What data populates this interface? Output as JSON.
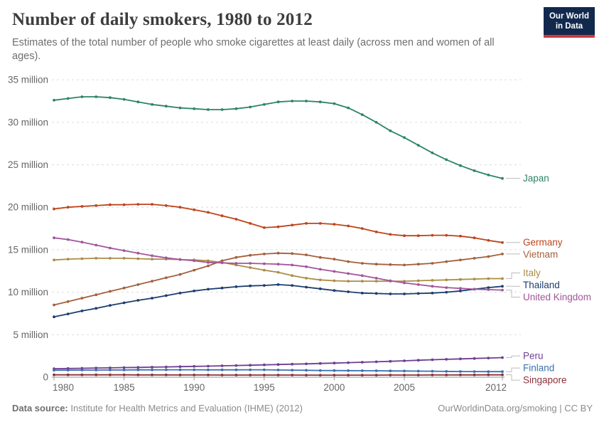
{
  "header": {
    "title": "Number of daily smokers, 1980 to 2012",
    "subtitle": "Estimates of the total number of people who smoke cigarettes at least daily (across men and women of all ages)."
  },
  "logo": {
    "line1": "Our World",
    "line2": "in Data"
  },
  "footer": {
    "source_label": "Data source:",
    "source_text": " Institute for Health Metrics and Evaluation (IHME) (2012)",
    "right_text": "OurWorldinData.org/smoking | CC BY"
  },
  "chart_data": {
    "type": "line",
    "title": "Number of daily smokers, 1980 to 2012",
    "xlabel": "",
    "ylabel": "",
    "xlim": [
      1980,
      2012
    ],
    "ylim": [
      0,
      35
    ],
    "grid": "horizontal-dashed",
    "legend_position": "right-end-labels",
    "x": [
      1980,
      1981,
      1982,
      1983,
      1984,
      1985,
      1986,
      1987,
      1988,
      1989,
      1990,
      1991,
      1992,
      1993,
      1994,
      1995,
      1996,
      1997,
      1998,
      1999,
      2000,
      2001,
      2002,
      2003,
      2004,
      2005,
      2006,
      2007,
      2008,
      2009,
      2010,
      2011,
      2012
    ],
    "xticks": [
      1980,
      1985,
      1990,
      1995,
      2000,
      2005,
      2012
    ],
    "yticks": [
      {
        "value": 0,
        "label": "0"
      },
      {
        "value": 5,
        "label": "5 million"
      },
      {
        "value": 10,
        "label": "10 million"
      },
      {
        "value": 15,
        "label": "15 million"
      },
      {
        "value": 20,
        "label": "20 million"
      },
      {
        "value": 25,
        "label": "25 million"
      },
      {
        "value": 30,
        "label": "30 million"
      },
      {
        "value": 35,
        "label": "35 million"
      }
    ],
    "unit": "million",
    "series": [
      {
        "name": "Japan",
        "color": "#2C8465",
        "values": [
          32.6,
          32.8,
          33.0,
          33.0,
          32.9,
          32.7,
          32.4,
          32.1,
          31.9,
          31.7,
          31.6,
          31.5,
          31.5,
          31.6,
          31.8,
          32.1,
          32.4,
          32.5,
          32.5,
          32.4,
          32.2,
          31.7,
          30.9,
          30.0,
          29.0,
          28.2,
          27.3,
          26.4,
          25.6,
          24.9,
          24.3,
          23.8,
          23.4
        ]
      },
      {
        "name": "Germany",
        "color": "#BE441C",
        "values": [
          19.8,
          20.0,
          20.1,
          20.2,
          20.3,
          20.3,
          20.35,
          20.35,
          20.2,
          20.0,
          19.7,
          19.4,
          19.0,
          18.6,
          18.1,
          17.6,
          17.7,
          17.9,
          18.1,
          18.1,
          18.0,
          17.8,
          17.5,
          17.1,
          16.8,
          16.65,
          16.65,
          16.7,
          16.7,
          16.6,
          16.4,
          16.1,
          15.85
        ]
      },
      {
        "name": "Vietnam",
        "color": "#A2603C",
        "values": [
          8.5,
          8.9,
          9.3,
          9.7,
          10.1,
          10.5,
          10.9,
          11.3,
          11.7,
          12.1,
          12.6,
          13.1,
          13.7,
          14.1,
          14.35,
          14.5,
          14.6,
          14.55,
          14.4,
          14.1,
          13.9,
          13.6,
          13.4,
          13.3,
          13.25,
          13.2,
          13.3,
          13.4,
          13.6,
          13.8,
          14.0,
          14.2,
          14.5
        ]
      },
      {
        "name": "Italy",
        "color": "#AC8C46",
        "values": [
          13.8,
          13.9,
          13.95,
          14.0,
          14.0,
          14.0,
          13.95,
          13.9,
          13.9,
          13.85,
          13.8,
          13.7,
          13.5,
          13.2,
          12.9,
          12.6,
          12.35,
          11.95,
          11.65,
          11.45,
          11.35,
          11.3,
          11.3,
          11.3,
          11.3,
          11.3,
          11.35,
          11.4,
          11.45,
          11.5,
          11.55,
          11.6,
          11.6
        ]
      },
      {
        "name": "Thailand",
        "color": "#1D3D6E",
        "values": [
          7.1,
          7.45,
          7.8,
          8.1,
          8.45,
          8.75,
          9.05,
          9.3,
          9.6,
          9.9,
          10.15,
          10.35,
          10.5,
          10.65,
          10.75,
          10.8,
          10.9,
          10.8,
          10.6,
          10.4,
          10.2,
          10.05,
          9.9,
          9.85,
          9.8,
          9.8,
          9.85,
          9.9,
          10.0,
          10.15,
          10.35,
          10.55,
          10.7
        ]
      },
      {
        "name": "United Kingdom",
        "color": "#A2559C",
        "values": [
          16.4,
          16.2,
          15.9,
          15.55,
          15.2,
          14.9,
          14.6,
          14.3,
          14.05,
          13.85,
          13.7,
          13.5,
          13.45,
          13.4,
          13.4,
          13.35,
          13.3,
          13.2,
          13.0,
          12.7,
          12.45,
          12.2,
          11.95,
          11.65,
          11.35,
          11.1,
          10.9,
          10.7,
          10.55,
          10.45,
          10.35,
          10.3,
          10.25
        ]
      },
      {
        "name": "Peru",
        "color": "#6D3E91",
        "values": [
          1.0,
          1.02,
          1.05,
          1.08,
          1.1,
          1.13,
          1.15,
          1.18,
          1.21,
          1.24,
          1.27,
          1.3,
          1.34,
          1.37,
          1.41,
          1.45,
          1.49,
          1.53,
          1.57,
          1.62,
          1.66,
          1.71,
          1.76,
          1.81,
          1.87,
          1.93,
          1.99,
          2.05,
          2.1,
          2.15,
          2.2,
          2.25,
          2.3
        ]
      },
      {
        "name": "Finland",
        "color": "#3D6FB0",
        "values": [
          0.82,
          0.83,
          0.84,
          0.84,
          0.85,
          0.85,
          0.86,
          0.86,
          0.87,
          0.87,
          0.87,
          0.86,
          0.86,
          0.86,
          0.87,
          0.87,
          0.85,
          0.83,
          0.81,
          0.79,
          0.78,
          0.77,
          0.76,
          0.75,
          0.74,
          0.73,
          0.71,
          0.7,
          0.68,
          0.67,
          0.66,
          0.65,
          0.65
        ]
      },
      {
        "name": "Singapore",
        "color": "#8C3039",
        "values": [
          0.28,
          0.28,
          0.28,
          0.28,
          0.28,
          0.28,
          0.27,
          0.27,
          0.27,
          0.26,
          0.26,
          0.26,
          0.25,
          0.25,
          0.25,
          0.25,
          0.25,
          0.25,
          0.24,
          0.24,
          0.24,
          0.24,
          0.24,
          0.24,
          0.25,
          0.25,
          0.25,
          0.26,
          0.26,
          0.27,
          0.27,
          0.28,
          0.28
        ]
      }
    ]
  }
}
